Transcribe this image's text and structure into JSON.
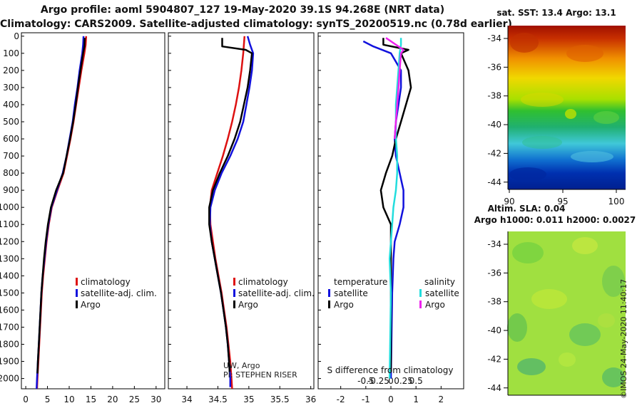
{
  "header": {
    "line1": "Argo profile: aoml 5904807_127 19-May-2020 39.1S 94.268E (NRT data)",
    "line2": "Climatology: CARS2009. Satellite-adjusted climatology: synTS_20200519.nc (0.78d earlier)"
  },
  "colors": {
    "climatology": "#dd1111",
    "satellite": "#1111dd",
    "argo": "#000000",
    "sal_sat": "#22dddd",
    "sal_argo": "#ee22ee"
  },
  "chart_data": [
    {
      "type": "line",
      "name": "temperature",
      "xlim": [
        -1,
        32
      ],
      "ylim": [
        2060,
        -20
      ],
      "xticks": [
        "0",
        "5",
        "10",
        "15",
        "20",
        "25",
        "30"
      ],
      "xtick_values": [
        0,
        5,
        10,
        15,
        20,
        25,
        30
      ],
      "yticks": [
        "0",
        "100",
        "200",
        "300",
        "400",
        "500",
        "600",
        "700",
        "800",
        "900",
        "1000",
        "1100",
        "1200",
        "1300",
        "1400",
        "1500",
        "1600",
        "1700",
        "1800",
        "1900",
        "2000"
      ],
      "ytick_values": [
        0,
        100,
        200,
        300,
        400,
        500,
        600,
        700,
        800,
        900,
        1000,
        1100,
        1200,
        1300,
        1400,
        1500,
        1600,
        1700,
        1800,
        1900,
        2000
      ],
      "legend": [
        "climatology",
        "satellite-adj. clim.",
        "Argo"
      ],
      "series": [
        {
          "name": "climatology",
          "color": "#dd1111",
          "points": [
            [
              13.9,
              0
            ],
            [
              13.8,
              50
            ],
            [
              13.5,
              100
            ],
            [
              12.8,
              200
            ],
            [
              12.2,
              300
            ],
            [
              11.6,
              400
            ],
            [
              11.0,
              500
            ],
            [
              10.3,
              600
            ],
            [
              9.5,
              700
            ],
            [
              8.7,
              800
            ],
            [
              7.3,
              900
            ],
            [
              6.0,
              1000
            ],
            [
              5.3,
              1100
            ],
            [
              4.8,
              1200
            ],
            [
              4.4,
              1300
            ],
            [
              4.0,
              1400
            ],
            [
              3.7,
              1500
            ],
            [
              3.5,
              1600
            ],
            [
              3.3,
              1700
            ],
            [
              3.1,
              1800
            ],
            [
              2.9,
              1900
            ],
            [
              2.7,
              2000
            ],
            [
              2.6,
              2060
            ]
          ]
        },
        {
          "name": "satellite-adj. clim.",
          "color": "#1111dd",
          "points": [
            [
              13.3,
              0
            ],
            [
              13.2,
              50
            ],
            [
              13.0,
              100
            ],
            [
              12.4,
              200
            ],
            [
              11.9,
              300
            ],
            [
              11.3,
              400
            ],
            [
              10.8,
              500
            ],
            [
              10.1,
              600
            ],
            [
              9.4,
              700
            ],
            [
              8.5,
              800
            ],
            [
              7.2,
              900
            ],
            [
              5.9,
              1000
            ],
            [
              5.2,
              1100
            ],
            [
              4.7,
              1200
            ],
            [
              4.3,
              1300
            ],
            [
              3.9,
              1400
            ],
            [
              3.6,
              1500
            ],
            [
              3.4,
              1600
            ],
            [
              3.2,
              1700
            ],
            [
              3.0,
              1800
            ],
            [
              2.8,
              1900
            ],
            [
              2.6,
              2000
            ],
            [
              2.5,
              2060
            ]
          ]
        },
        {
          "name": "Argo",
          "color": "#000000",
          "points": [
            [
              13.6,
              10
            ],
            [
              13.5,
              60
            ],
            [
              13.2,
              100
            ],
            [
              12.6,
              200
            ],
            [
              12.0,
              300
            ],
            [
              11.5,
              400
            ],
            [
              10.9,
              500
            ],
            [
              10.2,
              600
            ],
            [
              9.4,
              700
            ],
            [
              8.6,
              800
            ],
            [
              7.0,
              900
            ],
            [
              5.8,
              1000
            ],
            [
              5.1,
              1100
            ],
            [
              4.6,
              1200
            ],
            [
              4.2,
              1300
            ],
            [
              3.9,
              1400
            ],
            [
              3.6,
              1500
            ],
            [
              3.4,
              1600
            ],
            [
              3.2,
              1700
            ],
            [
              3.0,
              1800
            ],
            [
              2.8,
              1900
            ],
            [
              2.7,
              1970
            ]
          ]
        }
      ]
    },
    {
      "type": "line",
      "name": "salinity",
      "xlim": [
        33.7,
        36.05
      ],
      "xticks": [
        "34",
        "34.5",
        "35",
        "35.5",
        "36"
      ],
      "xtick_values": [
        34,
        34.5,
        35,
        35.5,
        36
      ],
      "legend": [
        "climatology",
        "satellite-adj. clim.",
        "Argo"
      ],
      "annotation": [
        "UW, Argo",
        "PI: STEPHEN RISER"
      ],
      "series": [
        {
          "name": "climatology",
          "color": "#dd1111",
          "points": [
            [
              34.93,
              0
            ],
            [
              34.92,
              50
            ],
            [
              34.91,
              100
            ],
            [
              34.88,
              200
            ],
            [
              34.84,
              300
            ],
            [
              34.79,
              400
            ],
            [
              34.73,
              500
            ],
            [
              34.66,
              600
            ],
            [
              34.58,
              700
            ],
            [
              34.49,
              800
            ],
            [
              34.4,
              900
            ],
            [
              34.37,
              1000
            ],
            [
              34.38,
              1100
            ],
            [
              34.42,
              1200
            ],
            [
              34.46,
              1300
            ],
            [
              34.51,
              1400
            ],
            [
              34.56,
              1500
            ],
            [
              34.6,
              1600
            ],
            [
              34.64,
              1700
            ],
            [
              34.67,
              1800
            ],
            [
              34.7,
              1900
            ],
            [
              34.72,
              2000
            ],
            [
              34.73,
              2060
            ]
          ]
        },
        {
          "name": "satellite-adj. clim.",
          "color": "#1111dd",
          "points": [
            [
              34.98,
              0
            ],
            [
              35.02,
              50
            ],
            [
              35.07,
              100
            ],
            [
              35.05,
              200
            ],
            [
              35.01,
              300
            ],
            [
              34.96,
              400
            ],
            [
              34.91,
              500
            ],
            [
              34.82,
              600
            ],
            [
              34.7,
              700
            ],
            [
              34.56,
              800
            ],
            [
              34.45,
              900
            ],
            [
              34.38,
              1000
            ],
            [
              34.37,
              1100
            ],
            [
              34.4,
              1200
            ],
            [
              34.45,
              1300
            ],
            [
              34.5,
              1400
            ],
            [
              34.55,
              1500
            ],
            [
              34.59,
              1600
            ],
            [
              34.63,
              1700
            ],
            [
              34.66,
              1800
            ],
            [
              34.68,
              1900
            ],
            [
              34.7,
              2000
            ],
            [
              34.7,
              2050
            ]
          ]
        },
        {
          "name": "Argo",
          "color": "#000000",
          "points": [
            [
              34.57,
              10
            ],
            [
              34.57,
              60
            ],
            [
              34.95,
              80
            ],
            [
              35.05,
              100
            ],
            [
              35.02,
              200
            ],
            [
              34.98,
              300
            ],
            [
              34.92,
              400
            ],
            [
              34.86,
              500
            ],
            [
              34.77,
              600
            ],
            [
              34.66,
              700
            ],
            [
              34.53,
              800
            ],
            [
              34.42,
              900
            ],
            [
              34.36,
              1000
            ],
            [
              34.36,
              1100
            ],
            [
              34.4,
              1200
            ],
            [
              34.45,
              1300
            ],
            [
              34.5,
              1400
            ],
            [
              34.55,
              1500
            ],
            [
              34.59,
              1600
            ],
            [
              34.63,
              1700
            ],
            [
              34.66,
              1800
            ],
            [
              34.68,
              1900
            ],
            [
              34.69,
              1960
            ]
          ]
        }
      ]
    },
    {
      "type": "line",
      "name": "difference from climatology",
      "xlim": [
        -2.9,
        2.9
      ],
      "xticks_bottom": [
        "-2",
        "-1",
        "0",
        "1",
        "2"
      ],
      "xtick_values_bottom": [
        -2,
        -1,
        0,
        1,
        2
      ],
      "xticks_top": [
        "-0.5",
        "-0.25",
        "0",
        "0.25",
        "0.5"
      ],
      "xtick_values_top": [
        -0.5,
        -0.25,
        0,
        0.25,
        0.5
      ],
      "xlabel": "S difference from climatology",
      "legend_titles": [
        "temperature",
        "salinity"
      ],
      "legend": [
        "satellite",
        "Argo",
        "satellite",
        "Argo"
      ],
      "series": [
        {
          "name": "temperature satellite",
          "color": "#1111dd",
          "points": [
            [
              -1.1,
              30
            ],
            [
              -0.7,
              60
            ],
            [
              0.0,
              100
            ],
            [
              0.4,
              200
            ],
            [
              0.4,
              300
            ],
            [
              0.3,
              400
            ],
            [
              0.2,
              500
            ],
            [
              0.15,
              600
            ],
            [
              0.2,
              700
            ],
            [
              0.35,
              800
            ],
            [
              0.5,
              900
            ],
            [
              0.5,
              1000
            ],
            [
              0.35,
              1100
            ],
            [
              0.15,
              1200
            ],
            [
              0.1,
              1300
            ],
            [
              0.05,
              1500
            ],
            [
              0.0,
              2000
            ]
          ]
        },
        {
          "name": "temperature Argo",
          "color": "#000000",
          "points": [
            [
              -0.3,
              10
            ],
            [
              -0.3,
              50
            ],
            [
              0.7,
              80
            ],
            [
              0.4,
              100
            ],
            [
              0.7,
              200
            ],
            [
              0.8,
              300
            ],
            [
              0.6,
              400
            ],
            [
              0.4,
              500
            ],
            [
              0.2,
              600
            ],
            [
              0.05,
              700
            ],
            [
              -0.2,
              800
            ],
            [
              -0.4,
              900
            ],
            [
              -0.3,
              1000
            ],
            [
              0.0,
              1100
            ],
            [
              0.0,
              1200
            ],
            [
              0.0,
              1300
            ],
            [
              0.0,
              1500
            ],
            [
              0.0,
              1960
            ]
          ]
        },
        {
          "name": "salinity satellite",
          "color": "#22dddd",
          "points": [
            [
              0.4,
              10
            ],
            [
              0.4,
              50
            ],
            [
              0.35,
              100
            ],
            [
              0.3,
              200
            ],
            [
              0.25,
              300
            ],
            [
              0.2,
              400
            ],
            [
              0.2,
              500
            ],
            [
              0.2,
              600
            ],
            [
              0.25,
              700
            ],
            [
              0.25,
              800
            ],
            [
              0.2,
              900
            ],
            [
              0.1,
              1000
            ],
            [
              0.05,
              1100
            ],
            [
              0.0,
              1200
            ],
            [
              -0.05,
              1300
            ],
            [
              0.0,
              1500
            ],
            [
              -0.05,
              2000
            ]
          ]
        },
        {
          "name": "salinity Argo",
          "color": "#ee22ee",
          "points": [
            [
              -0.2,
              10
            ],
            [
              0.5,
              80
            ],
            [
              0.4,
              100
            ],
            [
              0.35,
              200
            ],
            [
              0.3,
              300
            ],
            [
              0.25,
              400
            ],
            [
              0.2,
              500
            ],
            [
              0.15,
              600
            ]
          ]
        }
      ]
    }
  ],
  "sst_map": {
    "title": "sat. SST: 13.4 Argo: 13.1",
    "yticks": [
      "-34",
      "-36",
      "-38",
      "-40",
      "-42",
      "-44"
    ],
    "xticks": [
      "90",
      "95",
      "100"
    ]
  },
  "sla_map": {
    "title1": "Altim. SLA: 0.04",
    "title2": "Argo h1000: 0.011 h2000: 0.0027",
    "yticks": [
      "-34",
      "-36",
      "-38",
      "-40",
      "-42",
      "-44"
    ]
  },
  "footer": {
    "stamp": "©IMOS 24-May-2020 11:40:17"
  }
}
